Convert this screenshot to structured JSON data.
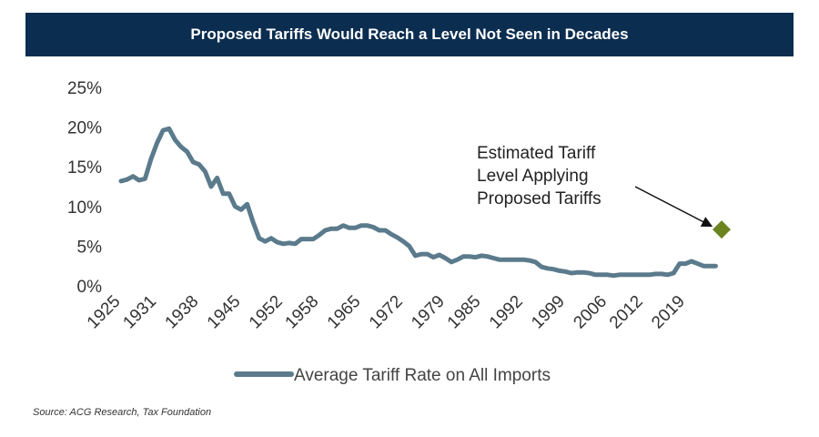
{
  "header": {
    "title": "Proposed Tariffs Would Reach a Level Not Seen in Decades"
  },
  "source": "Source: ACG Research, Tax Foundation",
  "chart_data": {
    "type": "line",
    "title": "Proposed Tariffs Would Reach a Level Not Seen in Decades",
    "xlabel": "",
    "ylabel": "",
    "ylim": [
      0,
      25
    ],
    "y_ticks": [
      "0%",
      "5%",
      "10%",
      "15%",
      "20%",
      "25%"
    ],
    "y_tick_values": [
      0,
      5,
      10,
      15,
      20,
      25
    ],
    "x_ticks": [
      "1925",
      "1931",
      "1938",
      "1945",
      "1952",
      "1958",
      "1965",
      "1972",
      "1979",
      "1985",
      "1992",
      "1999",
      "2006",
      "2012",
      "2019"
    ],
    "x_tick_values": [
      1925,
      1931,
      1938,
      1945,
      1952,
      1958,
      1965,
      1972,
      1979,
      1985,
      1992,
      1999,
      2006,
      2012,
      2019
    ],
    "xlim": [
      1925,
      2025
    ],
    "grid": false,
    "legend_position": "bottom",
    "series": [
      {
        "name": "Average Tariff Rate on All Imports",
        "color": "#5b7b8c",
        "x": [
          1925,
          1926,
          1927,
          1928,
          1929,
          1930,
          1931,
          1932,
          1933,
          1934,
          1935,
          1936,
          1937,
          1938,
          1939,
          1940,
          1941,
          1942,
          1943,
          1944,
          1945,
          1946,
          1947,
          1948,
          1949,
          1950,
          1951,
          1952,
          1953,
          1954,
          1955,
          1956,
          1957,
          1958,
          1959,
          1960,
          1961,
          1962,
          1963,
          1964,
          1965,
          1966,
          1967,
          1968,
          1969,
          1970,
          1971,
          1972,
          1973,
          1974,
          1975,
          1976,
          1977,
          1978,
          1979,
          1980,
          1981,
          1982,
          1983,
          1984,
          1985,
          1986,
          1987,
          1988,
          1989,
          1990,
          1991,
          1992,
          1993,
          1994,
          1995,
          1996,
          1997,
          1998,
          1999,
          2000,
          2001,
          2002,
          2003,
          2004,
          2005,
          2006,
          2007,
          2008,
          2009,
          2010,
          2011,
          2012,
          2013,
          2014,
          2015,
          2016,
          2017,
          2018,
          2019,
          2020,
          2021,
          2022,
          2023,
          2024
        ],
        "y": [
          13.2,
          13.4,
          13.8,
          13.3,
          13.5,
          16.0,
          18.0,
          19.6,
          19.8,
          18.4,
          17.5,
          16.9,
          15.6,
          15.3,
          14.4,
          12.5,
          13.6,
          11.6,
          11.6,
          10.0,
          9.6,
          10.3,
          8.0,
          6.0,
          5.6,
          6.0,
          5.5,
          5.3,
          5.4,
          5.3,
          5.9,
          5.9,
          5.9,
          6.4,
          7.0,
          7.2,
          7.2,
          7.6,
          7.3,
          7.3,
          7.6,
          7.6,
          7.4,
          7.0,
          7.0,
          6.5,
          6.1,
          5.6,
          5.0,
          3.8,
          4.0,
          4.0,
          3.6,
          3.9,
          3.5,
          3.0,
          3.3,
          3.7,
          3.7,
          3.6,
          3.8,
          3.7,
          3.5,
          3.3,
          3.3,
          3.3,
          3.3,
          3.3,
          3.2,
          3.0,
          2.4,
          2.2,
          2.1,
          1.9,
          1.8,
          1.6,
          1.7,
          1.7,
          1.6,
          1.4,
          1.4,
          1.4,
          1.3,
          1.4,
          1.4,
          1.4,
          1.4,
          1.4,
          1.4,
          1.5,
          1.5,
          1.4,
          1.6,
          2.8,
          2.8,
          3.1,
          2.8,
          2.5,
          2.5,
          2.5
        ]
      },
      {
        "name": "Estimated Tariff Level Applying Proposed Tariffs",
        "color": "#6b8420",
        "marker": "diamond",
        "x": [
          2025
        ],
        "y": [
          7.1
        ]
      }
    ],
    "annotations": [
      {
        "lines": [
          "Estimated Tariff",
          "Level Applying",
          "Proposed Tariffs"
        ],
        "arrow_to": [
          2023,
          8.0
        ]
      }
    ]
  }
}
